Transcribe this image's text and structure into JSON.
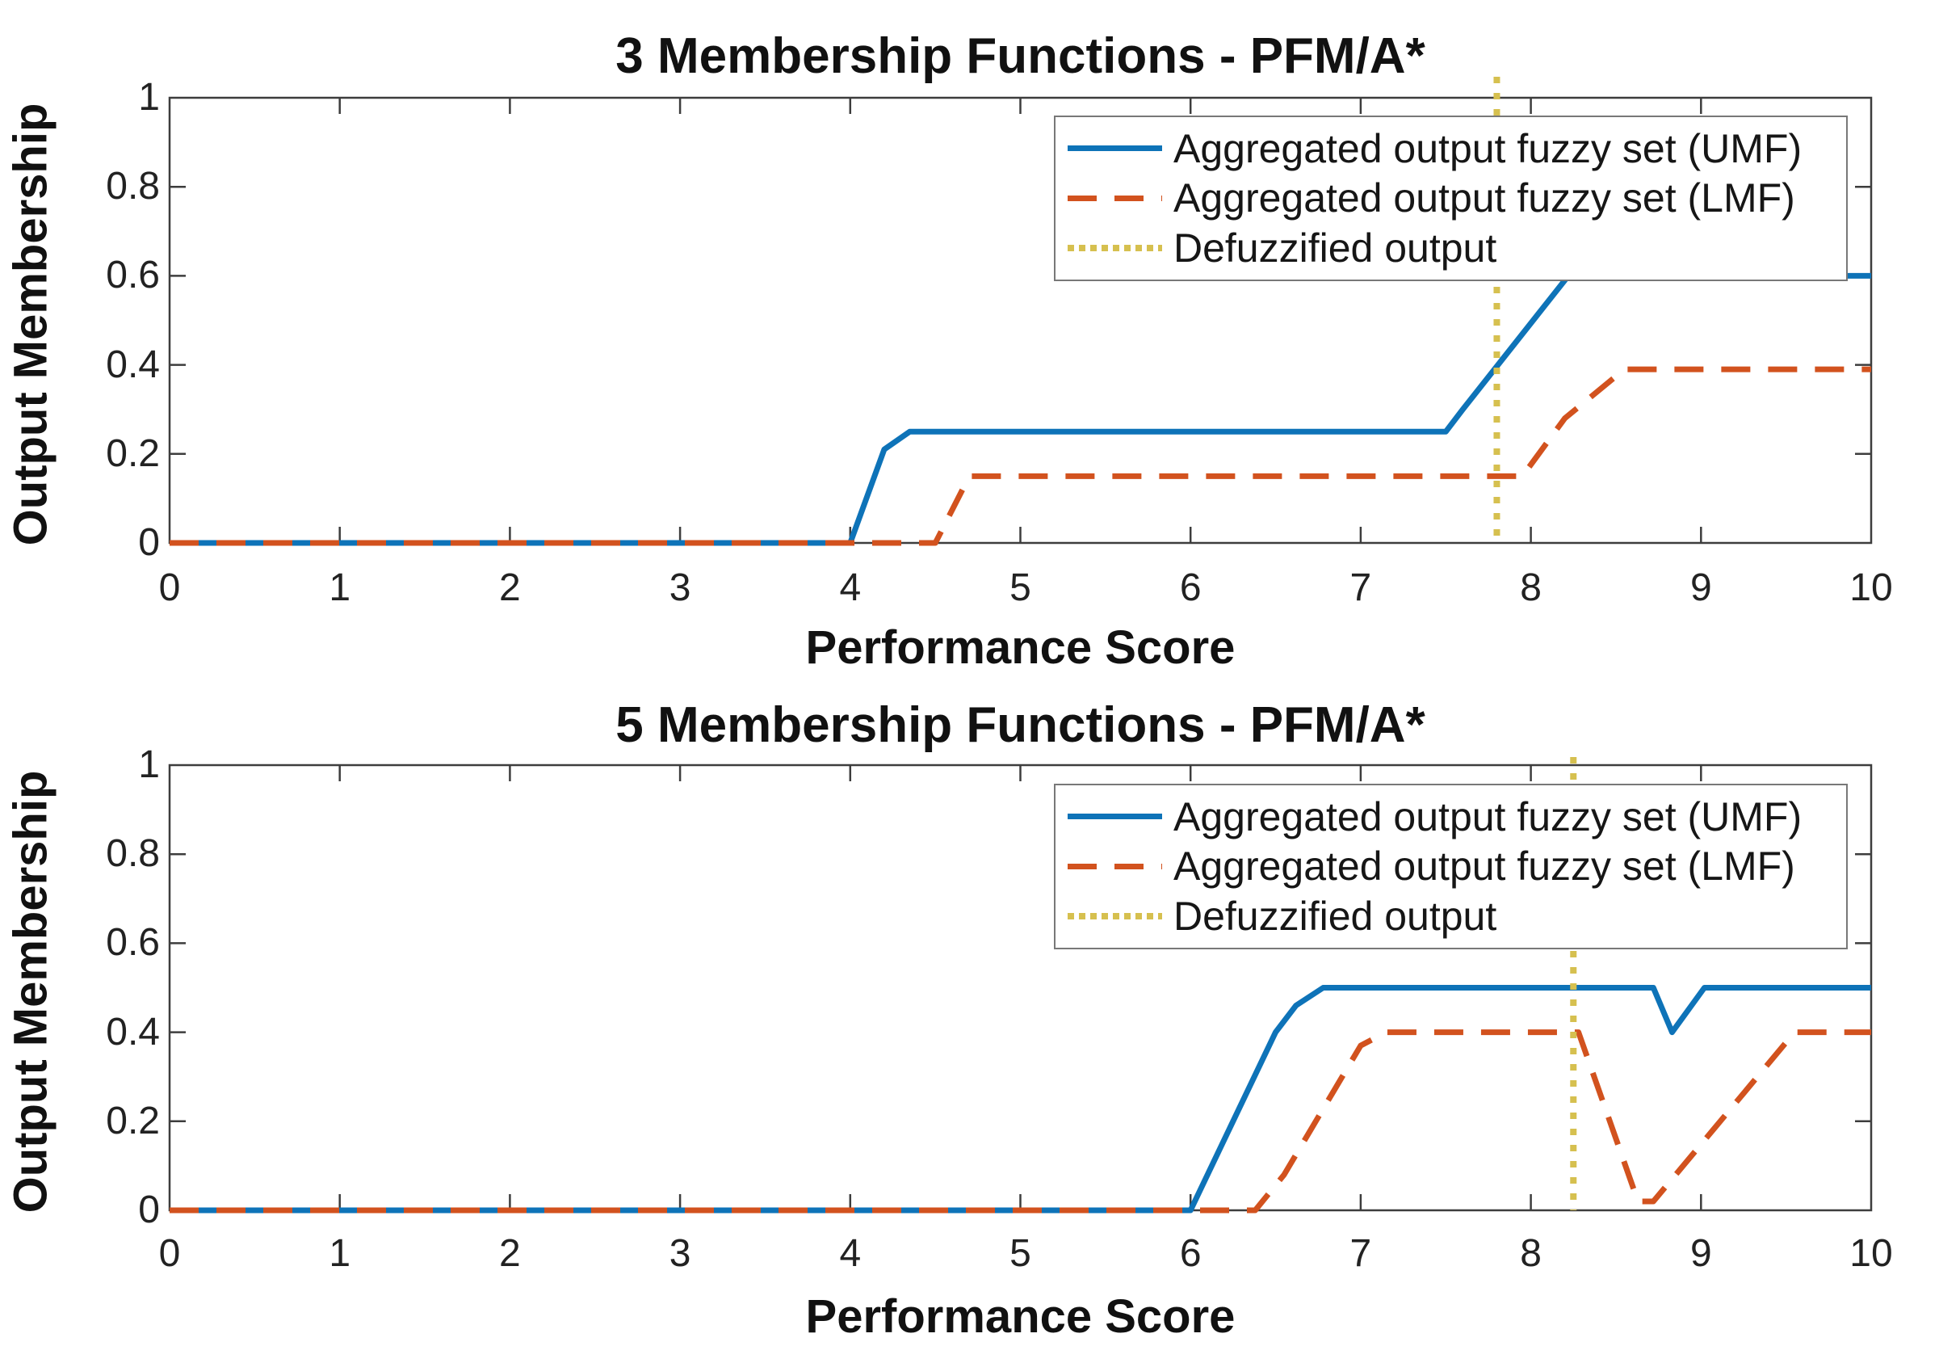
{
  "page": {
    "background": "#ffffff"
  },
  "colors": {
    "umf_blue": "#0e73b8",
    "lmf_red": "#d2521e",
    "defuzz_yellow": "#d6c04f",
    "axis_gray": "#3d3d3d",
    "text_dark": "#111111"
  },
  "chart_data": [
    {
      "type": "line",
      "title": "3 Membership Functions - PFM/A*",
      "xlabel": "Performance Score",
      "ylabel": "Output Membership",
      "xlim": [
        0,
        10
      ],
      "ylim": [
        0,
        1
      ],
      "x_ticks": [
        0,
        1,
        2,
        3,
        4,
        5,
        6,
        7,
        8,
        9,
        10
      ],
      "y_ticks": [
        0,
        0.2,
        0.4,
        0.6,
        0.8,
        1
      ],
      "grid": false,
      "legend_position": "upper right",
      "legend": [
        "Aggregated output fuzzy set (UMF)",
        "Aggregated output fuzzy set (LMF)",
        "Defuzzified output"
      ],
      "series": [
        {
          "name": "Aggregated output fuzzy set (UMF)",
          "style": "solid",
          "color_key": "umf_blue",
          "points": [
            [
              0,
              0
            ],
            [
              4,
              0
            ],
            [
              4.2,
              0.21
            ],
            [
              4.35,
              0.25
            ],
            [
              7.5,
              0.25
            ],
            [
              7.6,
              0.3
            ],
            [
              8.22,
              0.6
            ],
            [
              10,
              0.6
            ]
          ]
        },
        {
          "name": "Aggregated output fuzzy set (LMF)",
          "style": "dashed",
          "color_key": "lmf_red",
          "points": [
            [
              0,
              0
            ],
            [
              4.5,
              0
            ],
            [
              4.7,
              0.15
            ],
            [
              7.95,
              0.15
            ],
            [
              8.2,
              0.28
            ],
            [
              8.55,
              0.39
            ],
            [
              10,
              0.39
            ]
          ]
        }
      ],
      "defuzzified_output": 7.8
    },
    {
      "type": "line",
      "title": "5 Membership Functions - PFM/A*",
      "xlabel": "Performance Score",
      "ylabel": "Output Membership",
      "xlim": [
        0,
        10
      ],
      "ylim": [
        0,
        1
      ],
      "x_ticks": [
        0,
        1,
        2,
        3,
        4,
        5,
        6,
        7,
        8,
        9,
        10
      ],
      "y_ticks": [
        0,
        0.2,
        0.4,
        0.6,
        0.8,
        1
      ],
      "grid": false,
      "legend_position": "upper right",
      "legend": [
        "Aggregated output fuzzy set (UMF)",
        "Aggregated output fuzzy set (LMF)",
        "Defuzzified output"
      ],
      "series": [
        {
          "name": "Aggregated output fuzzy set (UMF)",
          "style": "solid",
          "color_key": "umf_blue",
          "points": [
            [
              0,
              0
            ],
            [
              6,
              0
            ],
            [
              6.5,
              0.4
            ],
            [
              6.62,
              0.46
            ],
            [
              6.78,
              0.5
            ],
            [
              8.72,
              0.5
            ],
            [
              8.83,
              0.4
            ],
            [
              9.02,
              0.5
            ],
            [
              10,
              0.5
            ]
          ]
        },
        {
          "name": "Aggregated output fuzzy set (LMF)",
          "style": "dashed",
          "color_key": "lmf_red",
          "points": [
            [
              0,
              0
            ],
            [
              6.38,
              0
            ],
            [
              6.55,
              0.08
            ],
            [
              7.0,
              0.37
            ],
            [
              7.15,
              0.4
            ],
            [
              8.28,
              0.4
            ],
            [
              8.63,
              0.02
            ],
            [
              8.72,
              0.02
            ],
            [
              9.55,
              0.4
            ],
            [
              10,
              0.4
            ]
          ]
        }
      ],
      "defuzzified_output": 8.25
    }
  ]
}
